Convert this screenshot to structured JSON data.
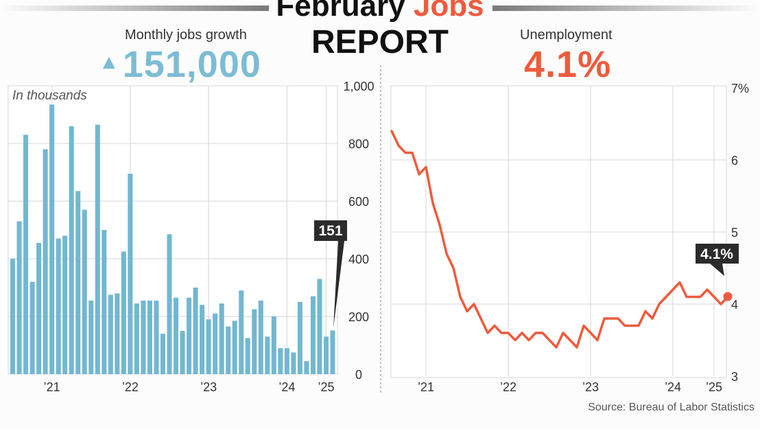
{
  "header": {
    "title_part1": "February ",
    "title_accent": "Jobs",
    "title_line2": "REPORT"
  },
  "kpis": {
    "jobs_label": "Monthly jobs growth",
    "jobs_value": "151,000",
    "unemployment_label": "Unemployment",
    "unemployment_value": "4.1%"
  },
  "source": "Source: Bureau of Labor Statistics",
  "colors": {
    "jobs_bar": "#72b7d0",
    "unemployment_line": "#ef5a3c",
    "callout_bg": "#2b2b2b"
  },
  "chart_data": [
    {
      "type": "bar",
      "subtitle": "In thousands",
      "ylim": [
        0,
        1000
      ],
      "yticks": [
        0,
        200,
        400,
        600,
        800,
        "1,000"
      ],
      "xticks": [
        {
          "label": "’21",
          "index": 6
        },
        {
          "label": "’22",
          "index": 18
        },
        {
          "label": "’23",
          "index": 30
        },
        {
          "label": "’24",
          "index": 42
        },
        {
          "label": "’25",
          "index": 48
        }
      ],
      "values": [
        400,
        530,
        830,
        320,
        455,
        780,
        935,
        470,
        480,
        860,
        635,
        570,
        255,
        865,
        500,
        275,
        280,
        425,
        695,
        245,
        255,
        255,
        255,
        140,
        485,
        265,
        150,
        265,
        300,
        240,
        190,
        210,
        245,
        165,
        185,
        290,
        125,
        225,
        255,
        130,
        200,
        90,
        90,
        75,
        250,
        45,
        270,
        330,
        130,
        151
      ],
      "callout": "151",
      "grid": true
    },
    {
      "type": "line",
      "ylim": [
        3,
        7
      ],
      "yticks": [
        "3",
        "4",
        "5",
        "6",
        "7%"
      ],
      "xticks": [
        {
          "label": "’21",
          "index": 5
        },
        {
          "label": "’22",
          "index": 17
        },
        {
          "label": "’23",
          "index": 29
        },
        {
          "label": "’24",
          "index": 41
        },
        {
          "label": "’25",
          "index": 47
        }
      ],
      "values": [
        6.4,
        6.2,
        6.1,
        6.1,
        5.8,
        5.9,
        5.4,
        5.1,
        4.7,
        4.5,
        4.1,
        3.9,
        4.0,
        3.8,
        3.6,
        3.7,
        3.6,
        3.6,
        3.5,
        3.6,
        3.5,
        3.6,
        3.6,
        3.5,
        3.4,
        3.6,
        3.5,
        3.4,
        3.7,
        3.6,
        3.5,
        3.8,
        3.8,
        3.8,
        3.7,
        3.7,
        3.7,
        3.9,
        3.8,
        4.0,
        4.1,
        4.2,
        4.3,
        4.1,
        4.1,
        4.1,
        4.2,
        4.1,
        4.0,
        4.1
      ],
      "callout": "4.1%",
      "grid": true
    }
  ]
}
